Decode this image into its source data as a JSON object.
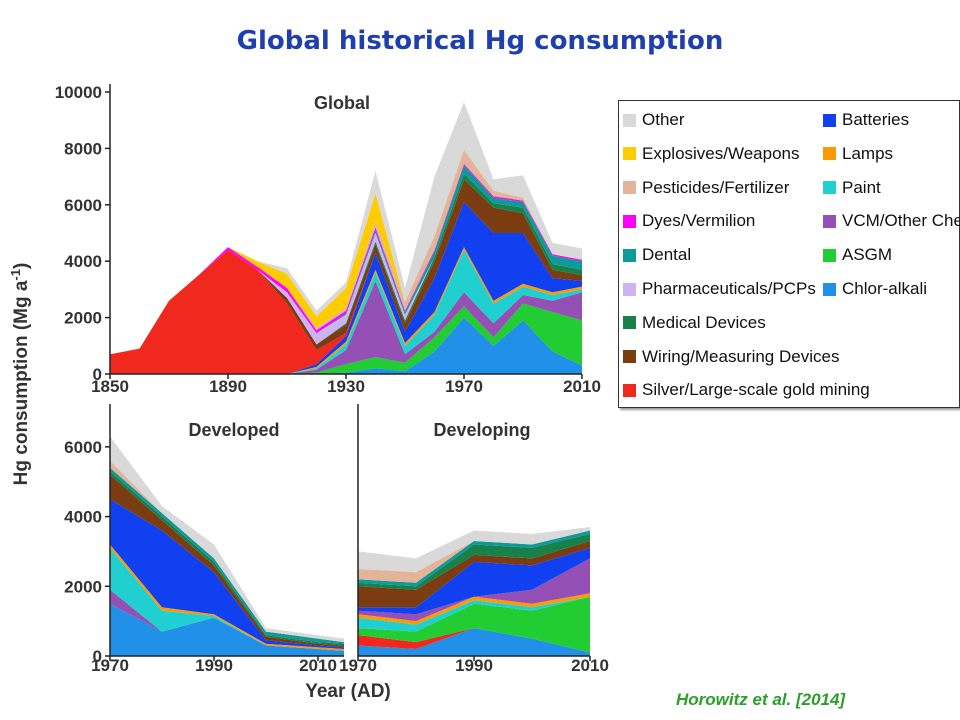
{
  "title": "Global historical Hg consumption",
  "citation": "Horowitz et al. [2014]",
  "ylabel": "Hg consumption (Mg a",
  "ylabel_sup": "-1",
  "ylabel_close": ")",
  "xlabel": "Year (AD)",
  "legend": {
    "left": [
      {
        "name": "Other",
        "color": "#d9d9d9"
      },
      {
        "name": "Explosives/Weapons",
        "color": "#ffcc00"
      },
      {
        "name": "Pesticides/Fertilizer",
        "color": "#e3b49a"
      },
      {
        "name": "Dyes/Vermilion",
        "color": "#ff00ff"
      },
      {
        "name": "Dental",
        "color": "#0e9a9a"
      },
      {
        "name": "Pharmaceuticals/PCPs",
        "color": "#cdb4f0"
      },
      {
        "name": "Medical Devices",
        "color": "#18804a"
      },
      {
        "name": "Wiring/Measuring Devices",
        "color": "#7a3c10"
      },
      {
        "name": "Silver/Large-scale gold mining",
        "color": "#f0281e"
      }
    ],
    "right": [
      {
        "name": "Batteries",
        "color": "#1040f0"
      },
      {
        "name": "Lamps",
        "color": "#ff9900"
      },
      {
        "name": "Paint",
        "color": "#20d0d0"
      },
      {
        "name": "VCM/Other Chemical",
        "color": "#9450b4"
      },
      {
        "name": "ASGM",
        "color": "#22cc33"
      },
      {
        "name": "Chlor-alkali",
        "color": "#2090e8"
      }
    ]
  },
  "chart_data": [
    {
      "type": "area",
      "title": "Global",
      "xlabel": "",
      "ylabel": "Hg consumption (Mg a-1)",
      "xlim": [
        1850,
        2010
      ],
      "ylim": [
        0,
        10000
      ],
      "xticks": [
        1850,
        1890,
        1930,
        1970,
        2010
      ],
      "yticks": [
        0,
        2000,
        4000,
        6000,
        8000,
        10000
      ],
      "x": [
        1850,
        1860,
        1870,
        1880,
        1890,
        1900,
        1910,
        1920,
        1930,
        1940,
        1950,
        1960,
        1970,
        1980,
        1990,
        2000,
        2010
      ],
      "series": [
        {
          "name": "Chlor-alkali",
          "color": "#2090e8",
          "values": [
            0,
            0,
            0,
            0,
            0,
            0,
            0,
            0,
            50,
            200,
            100,
            800,
            2000,
            1000,
            1900,
            800,
            300
          ]
        },
        {
          "name": "ASGM",
          "color": "#22cc33",
          "values": [
            0,
            0,
            0,
            0,
            0,
            0,
            0,
            50,
            300,
            400,
            300,
            500,
            400,
            300,
            600,
            1400,
            1600
          ]
        },
        {
          "name": "VCM/Other Chemical",
          "color": "#9450b4",
          "values": [
            0,
            0,
            0,
            0,
            0,
            0,
            0,
            100,
            500,
            2700,
            300,
            200,
            500,
            500,
            300,
            400,
            1000
          ]
        },
        {
          "name": "Paint",
          "color": "#20d0d0",
          "values": [
            0,
            0,
            0,
            0,
            0,
            0,
            0,
            50,
            200,
            300,
            300,
            600,
            1500,
            700,
            300,
            200,
            100
          ]
        },
        {
          "name": "Lamps",
          "color": "#ff9900",
          "values": [
            0,
            0,
            0,
            0,
            0,
            0,
            0,
            50,
            100,
            100,
            100,
            100,
            100,
            100,
            100,
            100,
            100
          ]
        },
        {
          "name": "Batteries",
          "color": "#1040f0",
          "values": [
            0,
            0,
            0,
            0,
            0,
            0,
            0,
            100,
            200,
            600,
            400,
            1200,
            1600,
            2400,
            1800,
            500,
            200
          ]
        },
        {
          "name": "Silver/Large-scale gold mining",
          "color": "#f0281e",
          "values": [
            700,
            900,
            2600,
            3500,
            4400,
            3700,
            2500,
            500,
            100,
            0,
            0,
            0,
            0,
            0,
            0,
            0,
            0
          ]
        },
        {
          "name": "Wiring/Measuring Devices",
          "color": "#7a3c10",
          "values": [
            0,
            0,
            0,
            0,
            0,
            0,
            200,
            200,
            300,
            300,
            300,
            600,
            800,
            900,
            700,
            300,
            200
          ]
        },
        {
          "name": "Medical Devices",
          "color": "#18804a",
          "values": [
            0,
            0,
            0,
            0,
            0,
            0,
            0,
            0,
            50,
            100,
            100,
            150,
            200,
            150,
            200,
            200,
            200
          ]
        },
        {
          "name": "Pharmaceuticals/PCPs",
          "color": "#cdb4f0",
          "values": [
            0,
            0,
            0,
            0,
            0,
            0,
            200,
            400,
            300,
            300,
            200,
            0,
            0,
            0,
            0,
            0,
            0
          ]
        },
        {
          "name": "Dental",
          "color": "#0e9a9a",
          "values": [
            0,
            0,
            0,
            0,
            0,
            0,
            0,
            0,
            50,
            100,
            100,
            200,
            300,
            200,
            200,
            300,
            300
          ]
        },
        {
          "name": "Dyes/Vermilion",
          "color": "#ff00ff",
          "values": [
            0,
            0,
            0,
            0,
            100,
            100,
            150,
            100,
            100,
            100,
            50,
            50,
            50,
            50,
            50,
            50,
            50
          ]
        },
        {
          "name": "Pesticides/Fertilizer",
          "color": "#e3b49a",
          "values": [
            0,
            0,
            0,
            0,
            0,
            0,
            0,
            100,
            100,
            200,
            300,
            500,
            500,
            200,
            100,
            0,
            0
          ]
        },
        {
          "name": "Explosives/Weapons",
          "color": "#ffcc00",
          "values": [
            0,
            0,
            0,
            0,
            0,
            200,
            500,
            400,
            700,
            1000,
            0,
            0,
            0,
            0,
            0,
            0,
            0
          ]
        },
        {
          "name": "Other",
          "color": "#d9d9d9",
          "values": [
            0,
            0,
            0,
            0,
            0,
            0,
            200,
            200,
            200,
            800,
            500,
            2100,
            1700,
            400,
            800,
            400,
            400
          ]
        }
      ]
    },
    {
      "type": "area",
      "title": "Developed",
      "xlabel": "Year (AD)",
      "ylabel": "Hg consumption (Mg a-1)",
      "xlim": [
        1970,
        2015
      ],
      "ylim": [
        0,
        7000
      ],
      "xticks": [
        1970,
        1990,
        2010
      ],
      "yticks": [
        0,
        2000,
        4000,
        6000
      ],
      "x": [
        1970,
        1980,
        1990,
        2000,
        2010,
        2015
      ],
      "series": [
        {
          "name": "Chlor-alkali",
          "color": "#2090e8",
          "values": [
            1500,
            700,
            1100,
            300,
            200,
            150
          ]
        },
        {
          "name": "VCM/Other Chemical",
          "color": "#9450b4",
          "values": [
            400,
            0,
            0,
            0,
            0,
            0
          ]
        },
        {
          "name": "Paint",
          "color": "#20d0d0",
          "values": [
            1200,
            600,
            50,
            0,
            0,
            0
          ]
        },
        {
          "name": "Lamps",
          "color": "#ff9900",
          "values": [
            100,
            100,
            50,
            50,
            50,
            50
          ]
        },
        {
          "name": "Batteries",
          "color": "#1040f0",
          "values": [
            1300,
            2200,
            1200,
            100,
            50,
            50
          ]
        },
        {
          "name": "Wiring/Measuring Devices",
          "color": "#7a3c10",
          "values": [
            700,
            300,
            200,
            100,
            50,
            50
          ]
        },
        {
          "name": "Medical Devices",
          "color": "#18804a",
          "values": [
            100,
            100,
            100,
            50,
            50,
            50
          ]
        },
        {
          "name": "Dental",
          "color": "#0e9a9a",
          "values": [
            100,
            100,
            100,
            100,
            100,
            50
          ]
        },
        {
          "name": "Pesticides/Fertilizer",
          "color": "#e3b49a",
          "values": [
            200,
            0,
            0,
            0,
            0,
            0
          ]
        },
        {
          "name": "Other",
          "color": "#d9d9d9",
          "values": [
            700,
            200,
            400,
            100,
            100,
            100
          ]
        }
      ]
    },
    {
      "type": "area",
      "title": "Developing",
      "xlabel": "Year (AD)",
      "ylabel": "",
      "xlim": [
        1970,
        2010
      ],
      "ylim": [
        0,
        7000
      ],
      "xticks": [
        1970,
        1990,
        2010
      ],
      "yticks": [],
      "x": [
        1970,
        1980,
        1990,
        2000,
        2010
      ],
      "series": [
        {
          "name": "Chlor-alkali",
          "color": "#2090e8",
          "values": [
            300,
            200,
            800,
            500,
            100
          ]
        },
        {
          "name": "Silver/Large-scale gold mining",
          "color": "#f0281e",
          "values": [
            300,
            200,
            0,
            0,
            0
          ]
        },
        {
          "name": "ASGM",
          "color": "#22cc33",
          "values": [
            200,
            300,
            700,
            800,
            1600
          ]
        },
        {
          "name": "Paint",
          "color": "#20d0d0",
          "values": [
            300,
            200,
            100,
            100,
            0
          ]
        },
        {
          "name": "Lamps",
          "color": "#ff9900",
          "values": [
            100,
            100,
            100,
            100,
            100
          ]
        },
        {
          "name": "VCM/Other Chemical",
          "color": "#9450b4",
          "values": [
            100,
            200,
            0,
            400,
            1000
          ]
        },
        {
          "name": "Batteries",
          "color": "#1040f0",
          "values": [
            100,
            200,
            1000,
            700,
            300
          ]
        },
        {
          "name": "Wiring/Measuring Devices",
          "color": "#7a3c10",
          "values": [
            600,
            500,
            200,
            200,
            200
          ]
        },
        {
          "name": "Medical Devices",
          "color": "#18804a",
          "values": [
            100,
            100,
            300,
            300,
            200
          ]
        },
        {
          "name": "Dental",
          "color": "#0e9a9a",
          "values": [
            100,
            100,
            100,
            100,
            100
          ]
        },
        {
          "name": "Pesticides/Fertilizer",
          "color": "#e3b49a",
          "values": [
            300,
            300,
            0,
            0,
            0
          ]
        },
        {
          "name": "Other",
          "color": "#d9d9d9",
          "values": [
            500,
            400,
            300,
            300,
            100
          ]
        }
      ]
    }
  ]
}
